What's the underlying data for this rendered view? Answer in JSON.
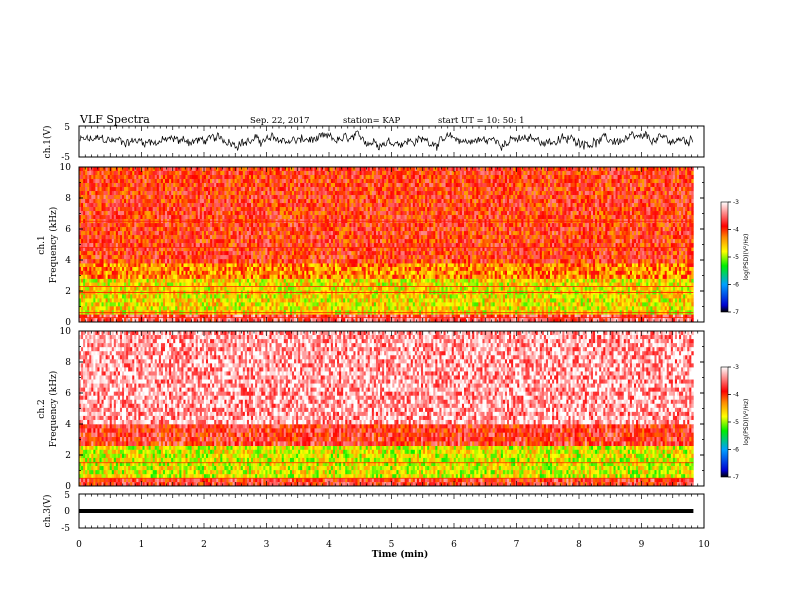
{
  "header": {
    "title": "VLF Spectra",
    "date": "Sep. 22, 2017",
    "station": "station= KAP",
    "start_ut": "start  UT =   10: 50: 1"
  },
  "colorbar_ticks": [
    "-3",
    "-4",
    "-5",
    "-6",
    "-7"
  ],
  "colorbar_label": "log(PSD)(V²/Hz)",
  "colors": {
    "cmap": [
      "#000000",
      "#0000d0",
      "#00a0ff",
      "#00ee00",
      "#ffff00",
      "#ff8800",
      "#ff0000",
      "#ffffff"
    ]
  },
  "chart_data": [
    {
      "id": "ch1-waveform",
      "type": "line",
      "ylabel": "ch.1(V)",
      "ylim": [
        -5,
        5
      ],
      "y_tick_labels": [
        "5",
        "-5"
      ],
      "xlim": [
        0,
        10
      ],
      "description_values": {
        "mean": 0.2,
        "amplitude_range": [
          -3,
          3
        ]
      }
    },
    {
      "id": "ch1-spectrogram",
      "type": "heatmap",
      "ylabel": "ch.1\nFrequency (kHz)",
      "ylim": [
        0,
        10
      ],
      "y_tick_labels": [
        "0",
        "2",
        "4",
        "6",
        "8",
        "10"
      ],
      "xlim": [
        0,
        10
      ],
      "zlim": [
        -7,
        -3
      ],
      "bands": [
        {
          "f": [
            0,
            0.5
          ],
          "log_psd": -3.6
        },
        {
          "f": [
            0.5,
            2.8
          ],
          "log_psd": -4.7
        },
        {
          "f": [
            2.8,
            3.8
          ],
          "log_psd": -4.3
        },
        {
          "f": [
            3.8,
            10
          ],
          "log_psd": -3.9
        }
      ],
      "line_frequencies_khz": [
        0.3,
        0.6,
        1.9,
        2.3,
        4.8,
        6.5
      ]
    },
    {
      "id": "ch2-spectrogram",
      "type": "heatmap",
      "ylabel": "ch.2\nFrequency (kHz)",
      "ylim": [
        0,
        10
      ],
      "y_tick_labels": [
        "0",
        "2",
        "4",
        "6",
        "8",
        "10"
      ],
      "xlim": [
        0,
        10
      ],
      "zlim": [
        -7,
        -3
      ],
      "bands": [
        {
          "f": [
            0,
            0.5
          ],
          "log_psd": -3.8
        },
        {
          "f": [
            0.5,
            2.6
          ],
          "log_psd": -4.8
        },
        {
          "f": [
            2.6,
            4.0
          ],
          "log_psd": -3.8
        },
        {
          "f": [
            4.0,
            10
          ],
          "log_psd": -3.3
        }
      ],
      "line_frequencies_khz": [
        0.5,
        1.5
      ]
    },
    {
      "id": "ch3-waveform",
      "type": "line",
      "ylabel": "ch.3(V)",
      "ylim": [
        -5,
        5
      ],
      "y_tick_labels": [
        "5",
        "0",
        "-5"
      ],
      "xlim": [
        0,
        10
      ],
      "x_tick_labels": [
        "0",
        "1",
        "2",
        "3",
        "4",
        "5",
        "6",
        "7",
        "8",
        "9",
        "10"
      ],
      "xlabel": "Time (min)",
      "constant_value": 0,
      "data_end_min": 9.83
    }
  ]
}
